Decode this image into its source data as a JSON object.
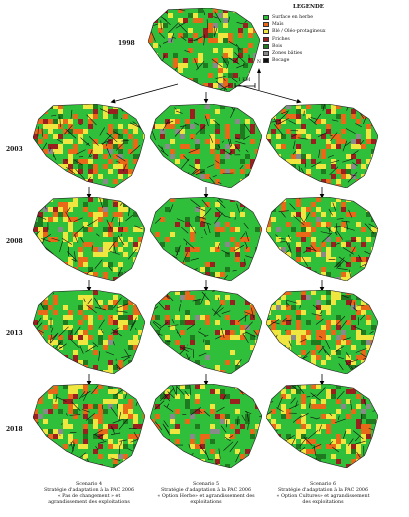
{
  "legend": {
    "title": "LEGENDE",
    "items": [
      {
        "label": "Surface en herbe",
        "color": "#2fbf3a"
      },
      {
        "label": "Maïs",
        "color": "#e86a18"
      },
      {
        "label": "Blé / Oléo-protagineux",
        "color": "#f0e640"
      },
      {
        "label": "Friches",
        "color": "#9a1f1f"
      },
      {
        "label": "Bois",
        "color": "#1f7a1f"
      },
      {
        "label": "Zones bâties",
        "color": "#8a8a8a"
      },
      {
        "label": "Bocage",
        "color": "#111111"
      }
    ]
  },
  "scale": {
    "label": "1 KM",
    "north": "N"
  },
  "years": [
    "1998",
    "2003",
    "2008",
    "2013",
    "2018"
  ],
  "scenarios": [
    {
      "title": "Scenario 4",
      "line1": "Stratégie d'adaptation à la PAC 2006",
      "line2": "« Pas de changement » et",
      "line3": "agrandissement des exploitations"
    },
    {
      "title": "Scenario 5",
      "line1": "Stratégie d'adaptation à la PAC 2006",
      "line2": "« Option Herbe» et agrandissement des",
      "line3": "exploitations"
    },
    {
      "title": "Scenario 6",
      "line1": "Stratégie d'adaptation à la PAC 2006",
      "line2": "« Option Cultures» et agrandissement",
      "line3": "des exploitations"
    }
  ]
}
